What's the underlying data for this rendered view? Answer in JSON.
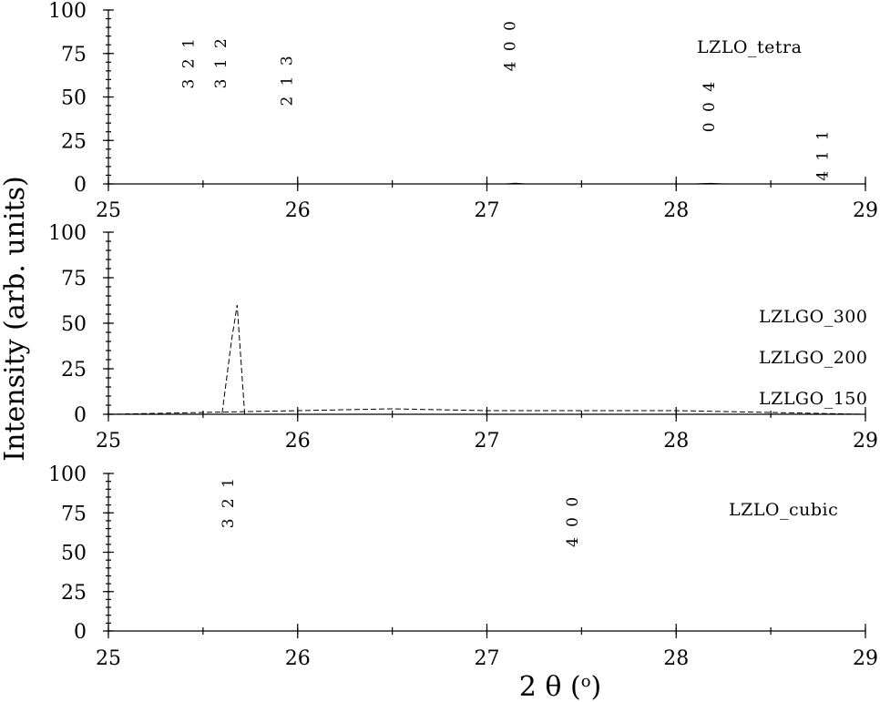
{
  "figure": {
    "ylabel": "Intensity (arb. units)",
    "xlabel": "2 θ (o)",
    "xlabel_main": "2 θ (",
    "xlabel_sup": "o",
    "xlabel_close": ")"
  },
  "chart_data": [
    {
      "type": "line",
      "xlim": [
        25,
        29
      ],
      "ylim": [
        0,
        100
      ],
      "x_ticks": [
        25,
        26,
        27,
        28,
        29
      ],
      "y_ticks": [
        0,
        25,
        50,
        75,
        100
      ],
      "x_minor_step": 0.5,
      "y_minor_step": 5,
      "grid": false,
      "series": [
        {
          "name": "LZLO_tetra",
          "color": "#000000",
          "x": [
            25.0,
            27.0,
            27.1,
            27.15,
            27.2,
            28.1,
            28.18,
            28.25,
            29.0
          ],
          "y": [
            0,
            0,
            0,
            0.4,
            0,
            0,
            0.3,
            0,
            0
          ]
        }
      ],
      "annotations": [
        {
          "text": "3 2 1",
          "x": 25.45,
          "y": 70
        },
        {
          "text": "3 1 2",
          "x": 25.62,
          "y": 70
        },
        {
          "text": "2 1 3",
          "x": 25.97,
          "y": 60
        },
        {
          "text": "4 0 0",
          "x": 27.15,
          "y": 80
        },
        {
          "text": "0 0 4",
          "x": 28.2,
          "y": 45
        },
        {
          "text": "4 1 1",
          "x": 28.8,
          "y": 17
        }
      ]
    },
    {
      "type": "line",
      "xlim": [
        25,
        29
      ],
      "ylim": [
        0,
        100
      ],
      "x_ticks": [
        25,
        26,
        27,
        28,
        29
      ],
      "y_ticks": [
        0,
        25,
        50,
        75,
        100
      ],
      "x_minor_step": 0.5,
      "y_minor_step": 5,
      "grid": false,
      "series": [
        {
          "name": "LZLGO_300",
          "color": "#000000",
          "x": [
            25.0,
            25.55,
            25.6,
            25.65,
            25.68,
            25.72,
            26.0,
            29.0
          ],
          "y": [
            0,
            0,
            0,
            40,
            60,
            0,
            0,
            0
          ]
        },
        {
          "name": "LZLGO_200",
          "color": "#000000",
          "x": [
            25.0,
            26.0,
            26.5,
            27.0,
            28.0,
            29.0
          ],
          "y": [
            0,
            2,
            3,
            2,
            2,
            0
          ]
        },
        {
          "name": "LZLGO_150",
          "color": "#000000",
          "x": [
            25.0,
            26.0,
            27.0,
            28.0,
            29.0
          ],
          "y": [
            0,
            0,
            0,
            0,
            0
          ]
        }
      ]
    },
    {
      "type": "line",
      "xlim": [
        25,
        29
      ],
      "ylim": [
        0,
        100
      ],
      "x_ticks": [
        25,
        26,
        27,
        28,
        29
      ],
      "y_ticks": [
        0,
        25,
        50,
        75,
        100
      ],
      "x_minor_step": 0.5,
      "y_minor_step": 5,
      "grid": false,
      "series": [
        {
          "name": "LZLO_cubic",
          "color": "#000000",
          "x": [
            25.0,
            29.0
          ],
          "y": [
            0,
            0
          ]
        }
      ],
      "annotations": [
        {
          "text": "3 2 1",
          "x": 25.66,
          "y": 82
        },
        {
          "text": "4 0 0",
          "x": 27.48,
          "y": 70
        }
      ]
    }
  ]
}
